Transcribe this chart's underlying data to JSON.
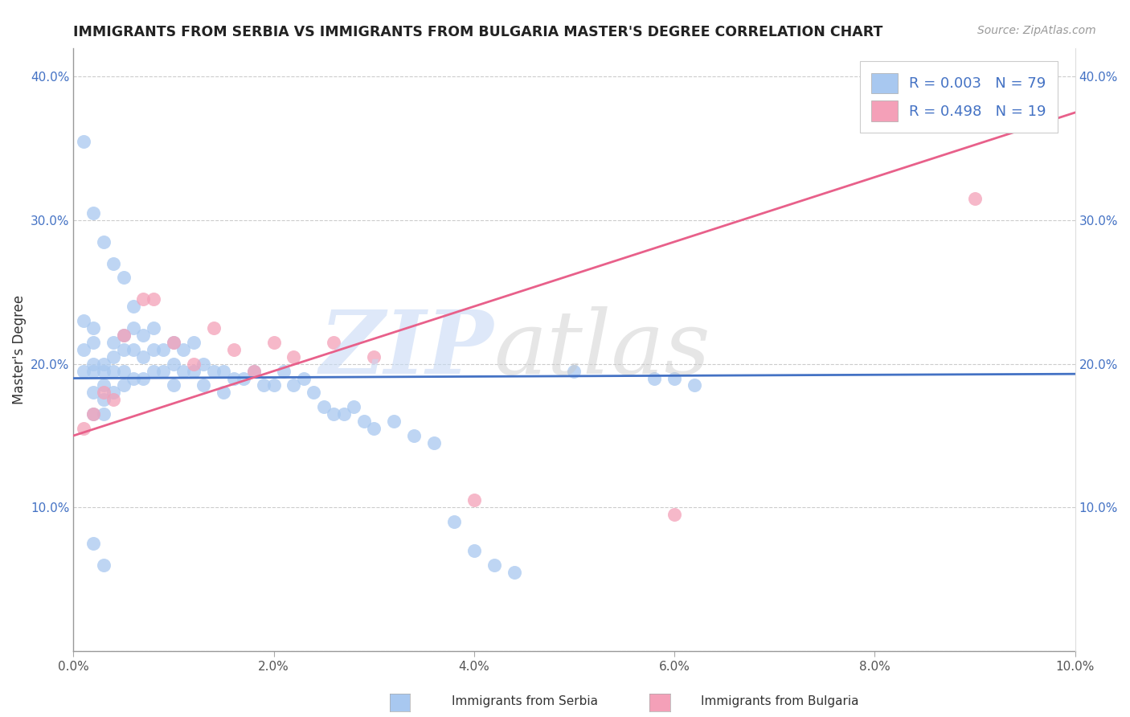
{
  "title": "IMMIGRANTS FROM SERBIA VS IMMIGRANTS FROM BULGARIA MASTER'S DEGREE CORRELATION CHART",
  "source": "Source: ZipAtlas.com",
  "ylabel": "Master's Degree",
  "serbia_label": "Immigrants from Serbia",
  "bulgaria_label": "Immigrants from Bulgaria",
  "serbia_R": 0.003,
  "serbia_N": 79,
  "bulgaria_R": 0.498,
  "bulgaria_N": 19,
  "xlim": [
    0.0,
    0.1
  ],
  "ylim": [
    0.0,
    0.42
  ],
  "xticks": [
    0.0,
    0.02,
    0.04,
    0.06,
    0.08,
    0.1
  ],
  "yticks": [
    0.0,
    0.1,
    0.2,
    0.3,
    0.4
  ],
  "xticklabels": [
    "0.0%",
    "2.0%",
    "4.0%",
    "6.0%",
    "8.0%",
    "10.0%"
  ],
  "left_yticklabels": [
    "",
    "10.0%",
    "20.0%",
    "30.0%",
    "40.0%"
  ],
  "right_yticklabels": [
    "",
    "10.0%",
    "20.0%",
    "30.0%",
    "40.0%"
  ],
  "serbia_color": "#a8c8f0",
  "bulgaria_color": "#f4a0b8",
  "serbia_line_color": "#4472c4",
  "bulgaria_line_color": "#e8608a",
  "serbia_x": [
    0.001,
    0.001,
    0.001,
    0.002,
    0.002,
    0.002,
    0.002,
    0.002,
    0.002,
    0.003,
    0.003,
    0.003,
    0.003,
    0.003,
    0.004,
    0.004,
    0.004,
    0.004,
    0.005,
    0.005,
    0.005,
    0.005,
    0.006,
    0.006,
    0.006,
    0.006,
    0.007,
    0.007,
    0.007,
    0.008,
    0.008,
    0.008,
    0.009,
    0.009,
    0.01,
    0.01,
    0.01,
    0.011,
    0.011,
    0.012,
    0.012,
    0.013,
    0.013,
    0.014,
    0.015,
    0.015,
    0.016,
    0.017,
    0.018,
    0.019,
    0.02,
    0.021,
    0.022,
    0.023,
    0.024,
    0.025,
    0.026,
    0.027,
    0.028,
    0.029,
    0.03,
    0.032,
    0.034,
    0.036,
    0.038,
    0.04,
    0.042,
    0.044,
    0.05,
    0.058,
    0.06,
    0.062,
    0.001,
    0.002,
    0.003,
    0.004,
    0.005,
    0.002,
    0.003
  ],
  "serbia_y": [
    0.195,
    0.21,
    0.23,
    0.2,
    0.215,
    0.225,
    0.195,
    0.18,
    0.165,
    0.2,
    0.195,
    0.185,
    0.175,
    0.165,
    0.215,
    0.205,
    0.195,
    0.18,
    0.22,
    0.21,
    0.195,
    0.185,
    0.24,
    0.225,
    0.21,
    0.19,
    0.22,
    0.205,
    0.19,
    0.225,
    0.21,
    0.195,
    0.21,
    0.195,
    0.215,
    0.2,
    0.185,
    0.21,
    0.195,
    0.215,
    0.195,
    0.2,
    0.185,
    0.195,
    0.195,
    0.18,
    0.19,
    0.19,
    0.195,
    0.185,
    0.185,
    0.195,
    0.185,
    0.19,
    0.18,
    0.17,
    0.165,
    0.165,
    0.17,
    0.16,
    0.155,
    0.16,
    0.15,
    0.145,
    0.09,
    0.07,
    0.06,
    0.055,
    0.195,
    0.19,
    0.19,
    0.185,
    0.355,
    0.305,
    0.285,
    0.27,
    0.26,
    0.075,
    0.06
  ],
  "bulgaria_x": [
    0.001,
    0.002,
    0.003,
    0.004,
    0.005,
    0.007,
    0.008,
    0.01,
    0.012,
    0.014,
    0.016,
    0.018,
    0.02,
    0.022,
    0.026,
    0.03,
    0.04,
    0.06,
    0.09
  ],
  "bulgaria_y": [
    0.155,
    0.165,
    0.18,
    0.175,
    0.22,
    0.245,
    0.245,
    0.215,
    0.2,
    0.225,
    0.21,
    0.195,
    0.215,
    0.205,
    0.215,
    0.205,
    0.105,
    0.095,
    0.315
  ],
  "serbia_line_y0": 0.19,
  "serbia_line_y1": 0.193,
  "bulgaria_line_y0": 0.15,
  "bulgaria_line_y1": 0.375
}
